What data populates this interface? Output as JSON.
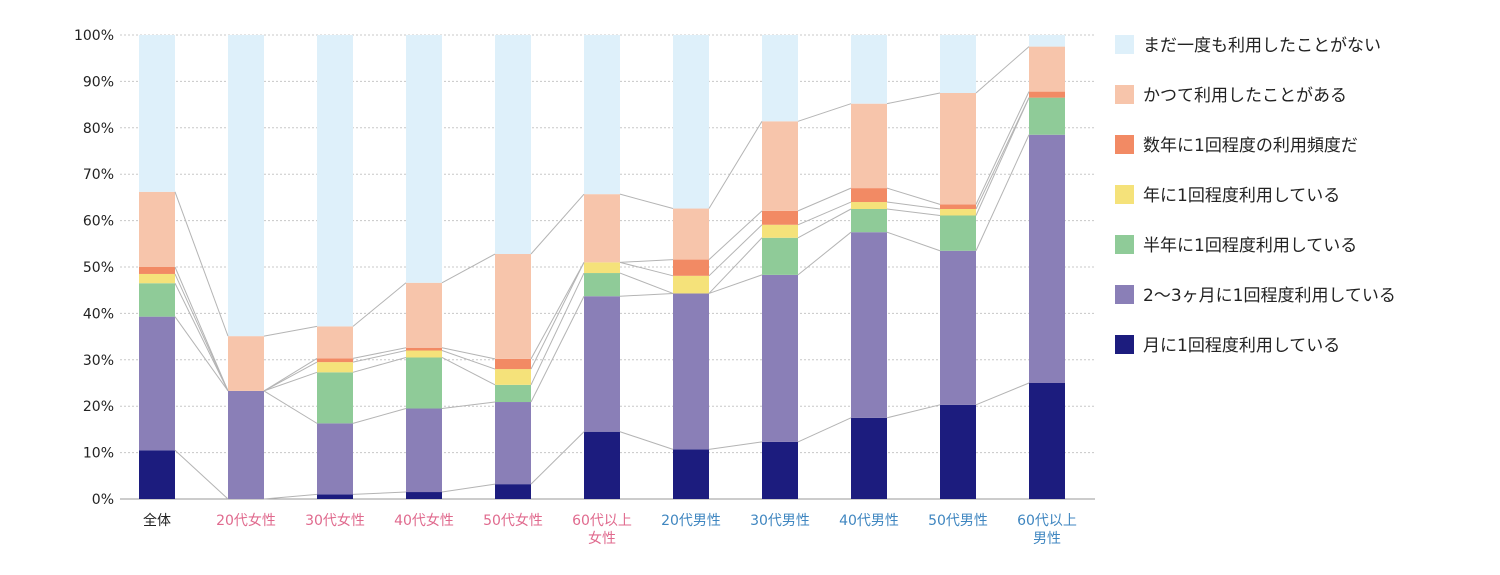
{
  "chart_data": {
    "type": "bar",
    "stacked": true,
    "percent": true,
    "title": "",
    "xlabel": "",
    "ylabel": "",
    "ylim": [
      0,
      100
    ],
    "yticks": [
      0,
      10,
      20,
      30,
      40,
      50,
      60,
      70,
      80,
      90,
      100
    ],
    "ytick_suffix": "%",
    "grid": true,
    "legend_position": "right",
    "categories": [
      {
        "lines": [
          "全体"
        ],
        "color": "#222222"
      },
      {
        "lines": [
          "20代女性"
        ],
        "color": "#e06a8e"
      },
      {
        "lines": [
          "30代女性"
        ],
        "color": "#e06a8e"
      },
      {
        "lines": [
          "40代女性"
        ],
        "color": "#e06a8e"
      },
      {
        "lines": [
          "50代女性"
        ],
        "color": "#e06a8e"
      },
      {
        "lines": [
          "60代以上",
          "女性"
        ],
        "color": "#e06a8e"
      },
      {
        "lines": [
          "20代男性"
        ],
        "color": "#3f86c0"
      },
      {
        "lines": [
          "30代男性"
        ],
        "color": "#3f86c0"
      },
      {
        "lines": [
          "40代男性"
        ],
        "color": "#3f86c0"
      },
      {
        "lines": [
          "50代男性"
        ],
        "color": "#3f86c0"
      },
      {
        "lines": [
          "60代以上",
          "男性"
        ],
        "color": "#3f86c0"
      }
    ],
    "series": [
      {
        "name": "月に1回程度利用している",
        "color": "#1c1c7e",
        "values": [
          10.5,
          0,
          1,
          1.5,
          3.2,
          14.5,
          10.7,
          12.3,
          17.5,
          20.3,
          25
        ]
      },
      {
        "name": "2〜3ヶ月に1回程度利用している",
        "color": "#8a7fb7",
        "values": [
          28.8,
          23.3,
          15.3,
          18,
          17.7,
          29.2,
          33.6,
          36,
          40,
          33.2,
          53.5
        ]
      },
      {
        "name": "半年に1回程度利用している",
        "color": "#8fcb98",
        "values": [
          7.2,
          0,
          11,
          11,
          3.7,
          5,
          0,
          8,
          5,
          7.6,
          8
        ]
      },
      {
        "name": "年に1回程度利用している",
        "color": "#f5e27a",
        "values": [
          2,
          0,
          2.2,
          1.5,
          3.4,
          2.3,
          3.8,
          2.8,
          1.5,
          1.4,
          0
        ]
      },
      {
        "name": "数年に1回程度の利用頻度だ",
        "color": "#f28a64",
        "values": [
          1.5,
          0,
          0.8,
          0.6,
          2.2,
          0,
          3.5,
          3,
          3,
          1,
          1.3
        ]
      },
      {
        "name": "かつて利用したことがある",
        "color": "#f7c5ab",
        "values": [
          16.2,
          11.8,
          6.9,
          14,
          22.6,
          14.7,
          11,
          19.3,
          18.2,
          24,
          9.7
        ]
      },
      {
        "name": "まだ一度も利用したことがない",
        "color": "#def0fa",
        "values": [
          33.8,
          64.9,
          62.8,
          53.4,
          47.2,
          34.3,
          37.4,
          18.6,
          14.8,
          12.5,
          2.5
        ]
      }
    ]
  }
}
